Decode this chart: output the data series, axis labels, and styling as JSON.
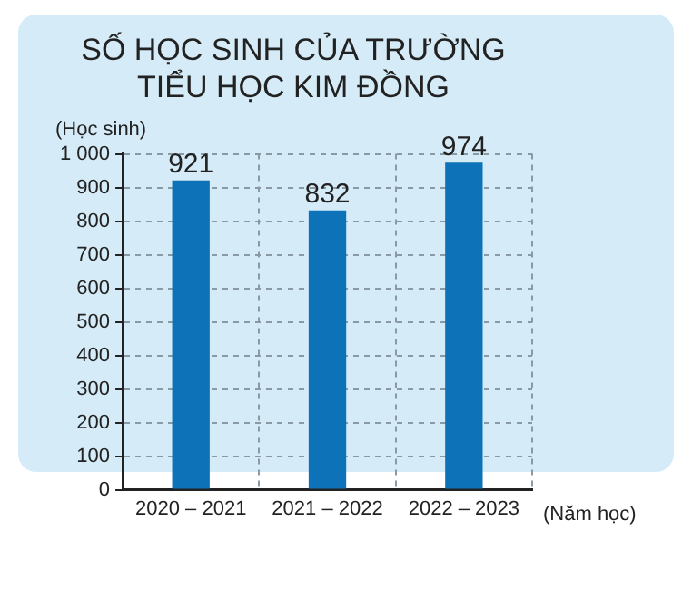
{
  "chart_data": {
    "type": "bar",
    "title": "SỐ HỌC SINH CỦA TRƯỜNG\nTIỂU HỌC KIM ĐỒNG",
    "xlabel": "(Năm học)",
    "ylabel": "(Học sinh)",
    "categories": [
      "2020 – 2021",
      "2021 – 2022",
      "2022 – 2023"
    ],
    "values": [
      921,
      832,
      974
    ],
    "color": "#0e72b9",
    "ylim": [
      0,
      1000
    ],
    "yticks": [
      0,
      100,
      200,
      300,
      400,
      500,
      600,
      700,
      800,
      900,
      {
        "value": 1000,
        "label": "1 000"
      }
    ],
    "grid": true,
    "data_labels": true
  }
}
